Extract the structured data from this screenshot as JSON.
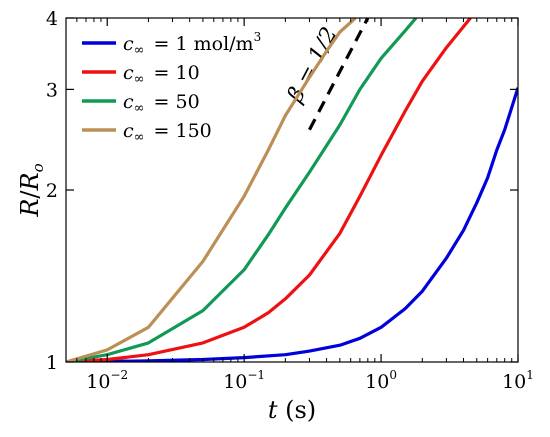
{
  "chart_data": {
    "type": "line",
    "xscale": "log",
    "yscale": "log",
    "xlim": [
      0.005,
      10
    ],
    "ylim": [
      1,
      4
    ],
    "xlabel": {
      "var": "t",
      "unit": "(s)"
    },
    "ylabel": {
      "num": "R",
      "den": "R",
      "sub": "o"
    },
    "xticks": [
      {
        "value": 0.01,
        "base": "10",
        "exp": "−2"
      },
      {
        "value": 0.1,
        "base": "10",
        "exp": "−1"
      },
      {
        "value": 1,
        "base": "10",
        "exp": "0"
      },
      {
        "value": 10,
        "base": "10",
        "exp": "1"
      }
    ],
    "yticks": [
      {
        "value": 1,
        "label": "1"
      },
      {
        "value": 2,
        "label": "2"
      },
      {
        "value": 3,
        "label": "3"
      },
      {
        "value": 4,
        "label": "4"
      }
    ],
    "legend_position": "top-left",
    "legend_var": {
      "base": "c",
      "sub": "∞"
    },
    "series": [
      {
        "name": "= 1 mol/m",
        "name_sup": "3",
        "color": "#0000dd",
        "x": [
          0.005,
          0.01,
          0.02,
          0.05,
          0.1,
          0.2,
          0.3,
          0.5,
          0.7,
          1,
          1.5,
          2,
          3,
          4,
          5,
          6,
          7,
          8,
          10
        ],
        "y": [
          1.0,
          1.002,
          1.005,
          1.01,
          1.018,
          1.03,
          1.045,
          1.07,
          1.1,
          1.15,
          1.24,
          1.33,
          1.52,
          1.7,
          1.9,
          2.1,
          2.35,
          2.55,
          3.02
        ]
      },
      {
        "name": "= 10",
        "color": "#ee1111",
        "x": [
          0.005,
          0.01,
          0.02,
          0.05,
          0.1,
          0.15,
          0.2,
          0.3,
          0.5,
          0.7,
          1,
          1.5,
          2,
          3,
          4.5
        ],
        "y": [
          1.0,
          1.01,
          1.03,
          1.08,
          1.15,
          1.22,
          1.29,
          1.42,
          1.68,
          1.95,
          2.3,
          2.75,
          3.1,
          3.55,
          4.0
        ]
      },
      {
        "name": "= 50",
        "color": "#119955",
        "x": [
          0.005,
          0.01,
          0.02,
          0.05,
          0.1,
          0.15,
          0.2,
          0.3,
          0.5,
          0.7,
          1,
          1.5,
          1.8
        ],
        "y": [
          1.0,
          1.03,
          1.08,
          1.23,
          1.45,
          1.67,
          1.86,
          2.15,
          2.6,
          3.0,
          3.4,
          3.8,
          4.0
        ]
      },
      {
        "name": "= 150",
        "color": "#bb8f55",
        "x": [
          0.005,
          0.01,
          0.02,
          0.05,
          0.1,
          0.15,
          0.2,
          0.3,
          0.4,
          0.5,
          0.65
        ],
        "y": [
          1.0,
          1.05,
          1.15,
          1.5,
          1.95,
          2.35,
          2.7,
          3.15,
          3.5,
          3.78,
          4.0
        ]
      }
    ],
    "annotation": {
      "text": "β = 1/2",
      "slope": 0.5,
      "x": [
        0.3,
        0.8
      ],
      "y": [
        2.55,
        4.0
      ]
    }
  }
}
